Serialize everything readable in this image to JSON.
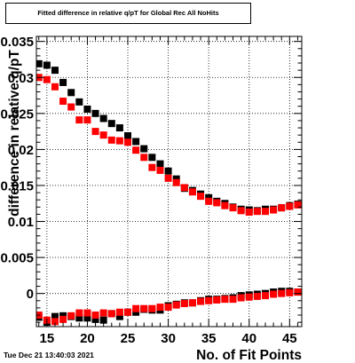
{
  "timestamp": "Tue Dec 21 13:40:03 2021",
  "chart_data": {
    "type": "scatter",
    "title": "Fitted difference in relative q/pT for Global Rec All NoHits",
    "xlabel": "No. of Fit Points",
    "ylabel": "difference in relative q/pT",
    "xlim": [
      13.7,
      46.5
    ],
    "ylim": [
      -0.0046,
      0.0357
    ],
    "grid": true,
    "x_ticks": [
      15,
      20,
      25,
      30,
      35,
      40,
      45
    ],
    "x_tick_labels": [
      "15",
      "20",
      "25",
      "30",
      "35",
      "40",
      "45"
    ],
    "y_ticks": [
      0,
      0.005,
      0.01,
      0.015,
      0.02,
      0.025,
      0.03,
      0.035
    ],
    "y_tick_labels": [
      "0",
      "0.005",
      "0.01",
      "0.015",
      "0.02",
      "0.025",
      "0.03",
      "0.035"
    ],
    "x": [
      14,
      15,
      16,
      17,
      18,
      19,
      20,
      21,
      22,
      23,
      24,
      25,
      26,
      27,
      28,
      29,
      30,
      31,
      32,
      33,
      34,
      35,
      36,
      37,
      38,
      39,
      40,
      41,
      42,
      43,
      44,
      45,
      46
    ],
    "series": [
      {
        "color": "#000000",
        "values": [
          0.0319,
          0.0317,
          0.031,
          0.0293,
          0.0279,
          0.0266,
          0.0256,
          0.025,
          0.0243,
          0.0236,
          0.023,
          0.0219,
          0.0211,
          0.0201,
          0.0189,
          0.018,
          0.017,
          0.0159,
          0.0146,
          0.0143,
          0.0138,
          0.0133,
          0.0128,
          0.0125,
          0.012,
          0.0117,
          0.0116,
          0.0115,
          0.0117,
          0.0117,
          0.0119,
          0.0122,
          0.0124
        ]
      },
      {
        "color": "#ff0000",
        "values": [
          0.03,
          0.0297,
          0.0287,
          0.0267,
          0.0259,
          0.0241,
          0.0241,
          0.0225,
          0.022,
          0.0213,
          0.0212,
          0.021,
          0.0199,
          0.0189,
          0.0175,
          0.0171,
          0.016,
          0.0154,
          0.0147,
          0.0141,
          0.0135,
          0.0128,
          0.0126,
          0.0122,
          0.0119,
          0.0115,
          0.0113,
          0.0114,
          0.0114,
          0.0116,
          0.0119,
          0.0121,
          0.0123
        ]
      },
      {
        "color": "#000000",
        "values": [
          -0.0033,
          -0.004,
          -0.0032,
          -0.0031,
          -0.0032,
          -0.0034,
          -0.0034,
          -0.0036,
          -0.0037,
          -0.0028,
          -0.0032,
          -0.0026,
          -0.0026,
          -0.0022,
          -0.0023,
          -0.0023,
          -0.0017,
          -0.0015,
          -0.0013,
          -0.0013,
          -0.001,
          -0.0008,
          -0.0008,
          -0.0007,
          -0.0006,
          -0.0003,
          -0.0002,
          -0.0001,
          0.0,
          0.0002,
          0.0003,
          0.0003,
          0.0002
        ]
      },
      {
        "color": "#ff0000",
        "values": [
          -0.003,
          -0.0037,
          -0.0039,
          -0.0036,
          -0.0031,
          -0.0027,
          -0.0027,
          -0.003,
          -0.0027,
          -0.0028,
          -0.0026,
          -0.0026,
          -0.0021,
          -0.0021,
          -0.0021,
          -0.0019,
          -0.0019,
          -0.0016,
          -0.0014,
          -0.0013,
          -0.0011,
          -0.001,
          -0.0009,
          -0.0008,
          -0.0008,
          -0.0006,
          -0.0005,
          -0.0004,
          -0.0003,
          -0.0001,
          0.0,
          0.0001,
          0.0002
        ]
      }
    ]
  }
}
